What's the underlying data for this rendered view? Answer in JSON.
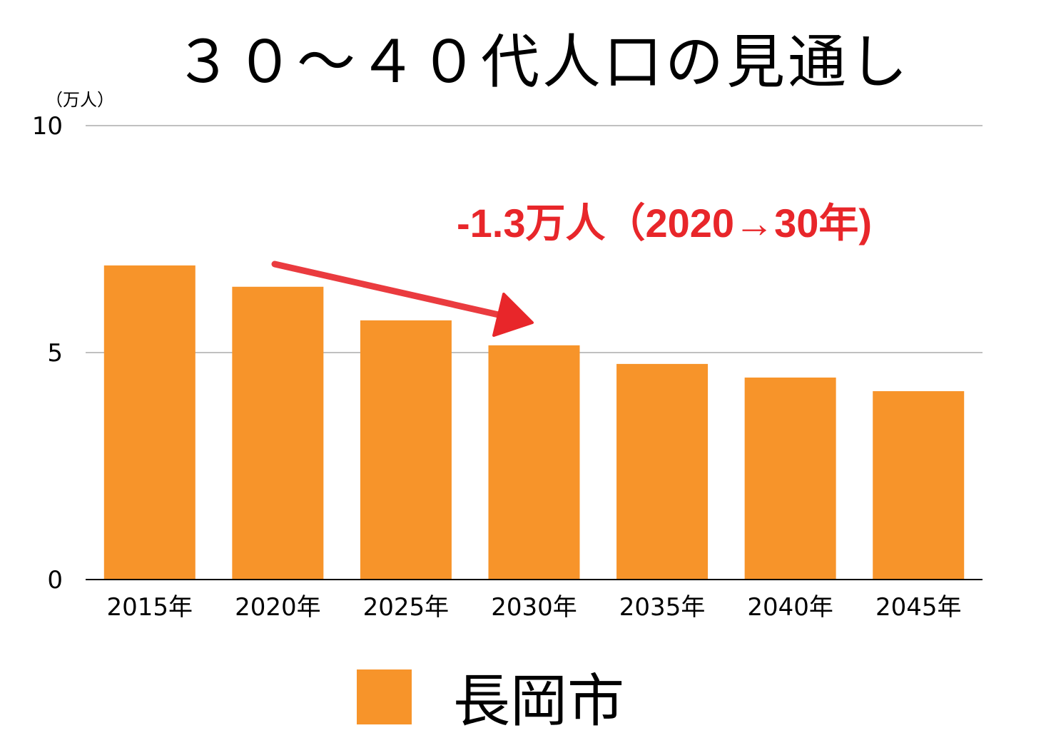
{
  "chart_data": {
    "type": "bar",
    "title": "３０～４０代人口の見通し",
    "ylabel": "（万人）",
    "categories": [
      "2015年",
      "2020年",
      "2025年",
      "2030年",
      "2035年",
      "2040年",
      "2045年"
    ],
    "series": [
      {
        "name": "長岡市",
        "values": [
          6.92,
          6.45,
          5.71,
          5.16,
          4.75,
          4.45,
          4.15
        ]
      }
    ],
    "ylim": [
      0,
      10
    ],
    "yticks": [
      "0",
      "5",
      "10"
    ],
    "grid": true,
    "legend": "bottom",
    "annotation": "-1.3万人（2020→30年)",
    "colors": {
      "bar": "#f7942a",
      "annotation": "#e8262a",
      "grid": "#c0c0c0"
    }
  }
}
